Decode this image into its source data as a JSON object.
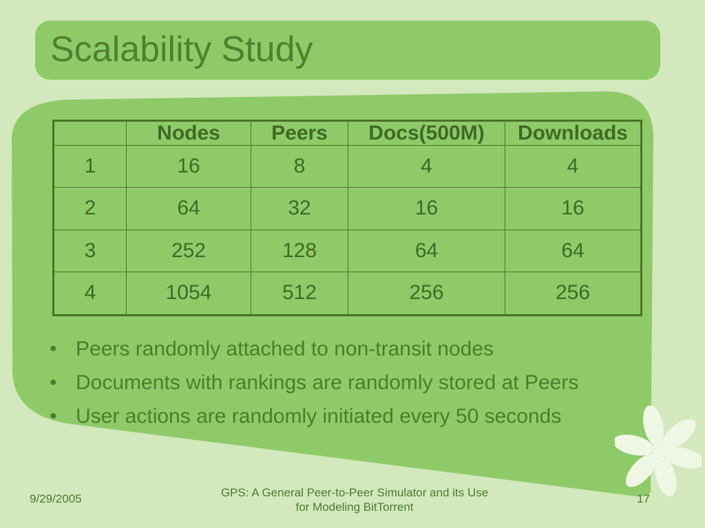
{
  "slide": {
    "title": "Scalability Study",
    "table": {
      "headers": [
        "",
        "Nodes",
        "Peers",
        "Docs(500M)",
        "Downloads"
      ],
      "rows": [
        [
          "1",
          "16",
          "8",
          "4",
          "4"
        ],
        [
          "2",
          "64",
          "32",
          "16",
          "16"
        ],
        [
          "3",
          "252",
          "128",
          "64",
          "64"
        ],
        [
          "4",
          "1054",
          "512",
          "256",
          "256"
        ]
      ]
    },
    "bullets": [
      "Peers randomly attached to non-transit nodes",
      "Documents with rankings are randomly stored at Peers",
      "User actions are randomly initiated every 50 seconds"
    ],
    "bullet_glyph": "•",
    "decoration_icon": "flower-icon"
  },
  "footer": {
    "date": "9/29/2005",
    "title_line1": "GPS: A General Peer-to-Peer Simulator and its Use",
    "title_line2": "for Modeling BitTorrent",
    "page_number": "17"
  },
  "colors": {
    "background": "#d3e8bd",
    "panel": "#8fca69",
    "text": "#4a7d2c",
    "table_border": "#4a7226",
    "flower": "#eef7e4"
  }
}
